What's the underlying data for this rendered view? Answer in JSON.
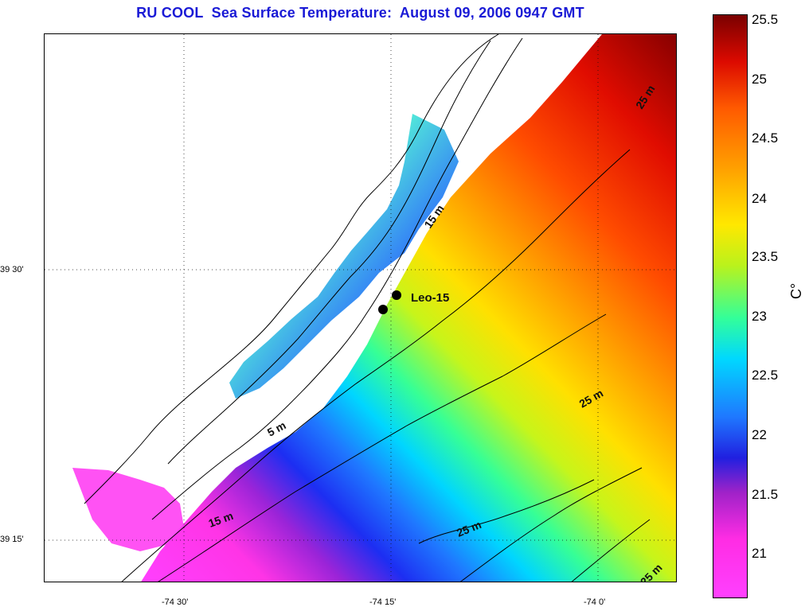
{
  "title": "RU COOL  Sea Surface Temperature:  August 09, 2006 0947 GMT",
  "colorbar": {
    "ticks": [
      "25.5",
      "25",
      "24.5",
      "24",
      "23.5",
      "23",
      "22.5",
      "22",
      "21.5",
      "21"
    ],
    "unit": "C°"
  },
  "axes": {
    "y_labels": [
      "39 30'",
      "39 15'"
    ],
    "x_labels": [
      "-74 30'",
      "-74 15'",
      "-74 0'"
    ]
  },
  "annotations": {
    "station": "Leo-15",
    "contours": [
      "25 m",
      "15 m",
      "5 m",
      "25 m",
      "15 m",
      "25 m",
      "25 m"
    ]
  },
  "colors": {
    "title": "#1a1ad6",
    "sea_cold": "#ff40ff",
    "sea_mid": "#00d8ff",
    "sea_warm": "#dc0a00"
  }
}
